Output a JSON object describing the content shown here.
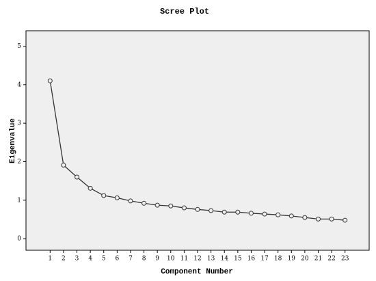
{
  "chart_data": {
    "type": "line",
    "title": "Scree Plot",
    "x_label": "Component Number",
    "y_label": "Eigenvalue",
    "x": [
      1,
      2,
      3,
      4,
      5,
      6,
      7,
      8,
      9,
      10,
      11,
      12,
      13,
      14,
      15,
      16,
      17,
      18,
      19,
      20,
      21,
      22,
      23
    ],
    "series": [
      {
        "name": "Eigenvalue",
        "color": "#333333",
        "values": [
          4.1,
          1.91,
          1.6,
          1.31,
          1.12,
          1.06,
          0.98,
          0.92,
          0.87,
          0.85,
          0.8,
          0.76,
          0.73,
          0.69,
          0.69,
          0.66,
          0.64,
          0.62,
          0.59,
          0.55,
          0.51,
          0.51,
          0.48
        ]
      }
    ],
    "xlim": [
      -0.8,
      24.8
    ],
    "ylim": [
      -0.3,
      5.4
    ],
    "xticks": [
      1,
      2,
      3,
      4,
      5,
      6,
      7,
      8,
      9,
      10,
      11,
      12,
      13,
      14,
      15,
      16,
      17,
      18,
      19,
      20,
      21,
      22,
      23
    ],
    "yticks": [
      0,
      1,
      2,
      3,
      4,
      5
    ],
    "grid": false,
    "markers": "open-circle",
    "background": "#efefef"
  }
}
